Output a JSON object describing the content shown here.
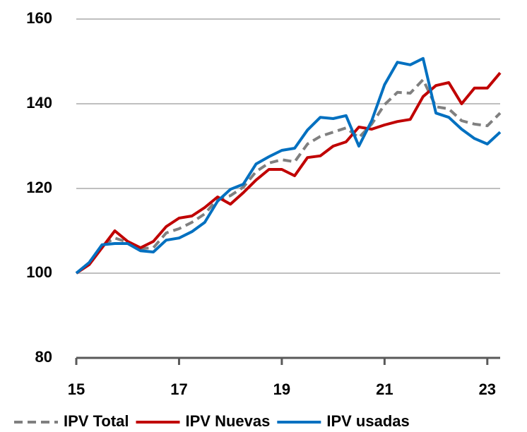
{
  "chart_data": {
    "type": "line",
    "x": [
      15,
      15.25,
      15.5,
      15.75,
      16,
      16.25,
      16.5,
      16.75,
      17,
      17.25,
      17.5,
      17.75,
      18,
      18.25,
      18.5,
      18.75,
      19,
      19.25,
      19.5,
      19.75,
      20,
      20.25,
      20.5,
      20.75,
      21,
      21.25,
      21.5,
      21.75,
      22,
      22.25,
      22.5,
      22.75,
      23,
      23.25
    ],
    "series": [
      {
        "name": "IPV Total",
        "color": "#808080",
        "dash": true,
        "values": [
          100,
          102.3,
          106.5,
          108.3,
          107.3,
          105.8,
          106,
          109.5,
          110.5,
          112,
          114,
          117.5,
          118.3,
          120.3,
          124,
          126,
          126.8,
          126.3,
          130.5,
          132.3,
          133.3,
          134.3,
          132,
          135.2,
          139.8,
          142.7,
          142.5,
          145.7,
          139.3,
          138.8,
          136,
          135.2,
          134.8,
          137.8
        ]
      },
      {
        "name": "IPV Nuevas",
        "color": "#c00000",
        "values": [
          100,
          102,
          106,
          110,
          107.5,
          106,
          107.5,
          111,
          113,
          113.5,
          115.5,
          118,
          116.3,
          119,
          122,
          124.5,
          124.5,
          123,
          127.3,
          127.7,
          130,
          131,
          134.5,
          134,
          135,
          135.8,
          136.3,
          141.7,
          144.3,
          145,
          140,
          143.7,
          143.7,
          147.3
        ]
      },
      {
        "name": "IPV usadas",
        "color": "#0070c0",
        "values": [
          100,
          102.5,
          106.7,
          107,
          107,
          105.3,
          105,
          107.8,
          108.3,
          109.8,
          112,
          117,
          119.8,
          121,
          125.8,
          127.5,
          129,
          129.5,
          133.8,
          136.8,
          136.5,
          137.2,
          130,
          136,
          144.5,
          149.8,
          149.2,
          150.7,
          137.8,
          136.8,
          134,
          131.8,
          130.5,
          133.3
        ]
      }
    ],
    "xlim": [
      15,
      23.25
    ],
    "xticks": [
      15,
      17,
      19,
      21,
      23
    ],
    "ylim": [
      80,
      160
    ],
    "yticks": [
      80,
      100,
      120,
      140,
      160
    ],
    "grid": true,
    "legend": "bottom"
  }
}
